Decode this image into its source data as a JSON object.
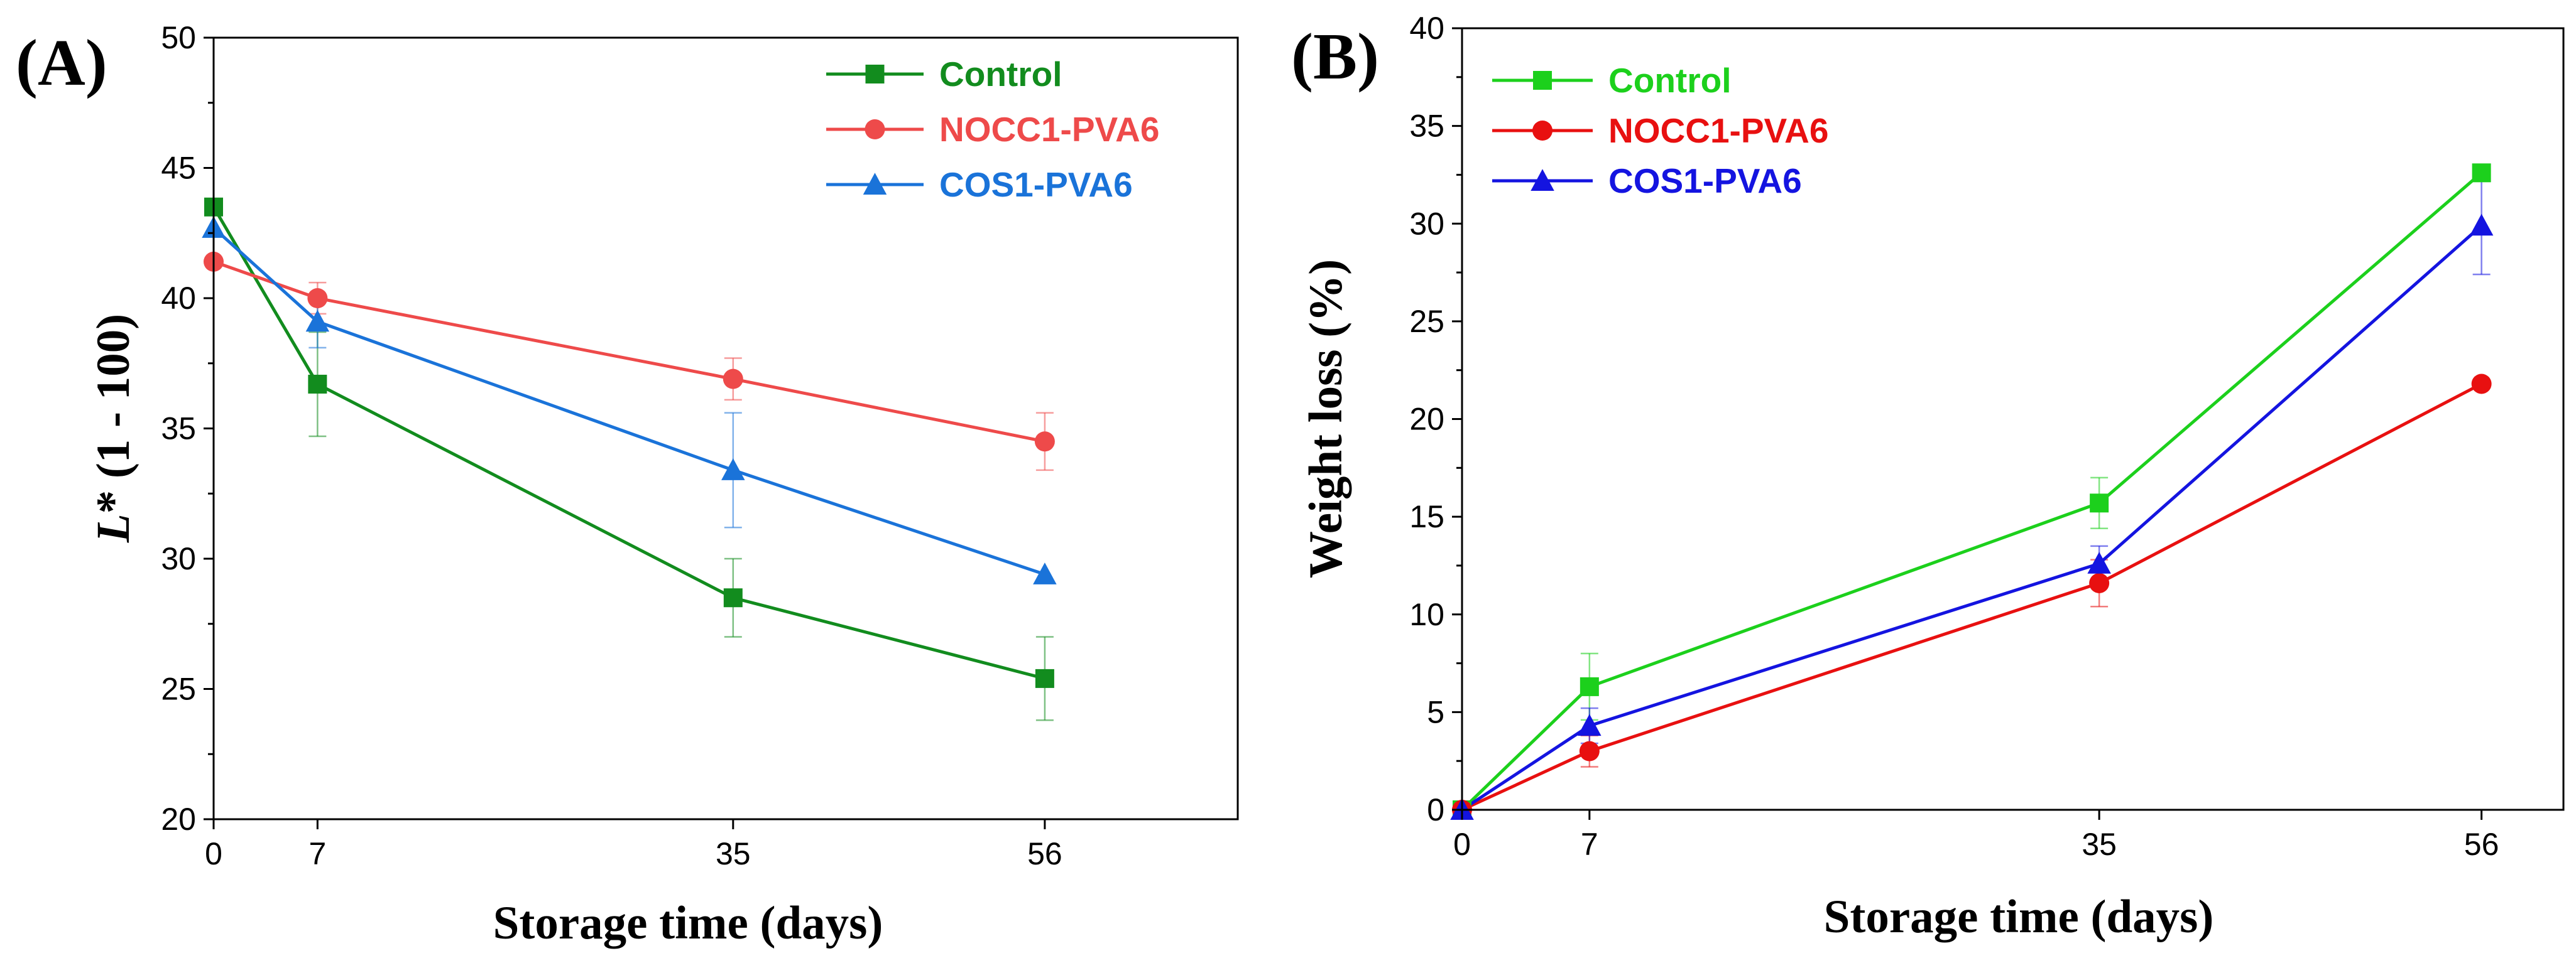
{
  "chart_data": [
    {
      "type": "line",
      "panel_label": "(A)",
      "xlabel": "Storage time (days)",
      "ylabel_italic": "L",
      "ylabel_rest": "* (1 - 100)",
      "x": [
        0,
        7,
        35,
        56
      ],
      "x_tick_labels": [
        "0",
        "7",
        "35",
        "56"
      ],
      "y_ticks": [
        20,
        25,
        30,
        35,
        40,
        45,
        50
      ],
      "y_tick_labels": [
        "20",
        "25",
        "30",
        "35",
        "40",
        "45",
        "50"
      ],
      "xlim": [
        0,
        69
      ],
      "ylim": [
        20,
        50
      ],
      "legend_position": "top-right",
      "series": [
        {
          "name": "Control",
          "color": "#128c1e",
          "marker": "square",
          "values": [
            43.5,
            36.7,
            28.5,
            25.4
          ],
          "errors": [
            0,
            2.0,
            1.5,
            1.6
          ]
        },
        {
          "name": "NOCC1-PVA6",
          "color": "#ee4a4a",
          "marker": "circle",
          "values": [
            41.4,
            40.0,
            36.9,
            34.5
          ],
          "errors": [
            0,
            0.6,
            0.8,
            1.1
          ]
        },
        {
          "name": "COS1-PVA6",
          "color": "#1a73d9",
          "marker": "triangle",
          "values": [
            42.7,
            39.1,
            33.4,
            29.4
          ],
          "errors": [
            0,
            1.0,
            2.2,
            0
          ]
        }
      ]
    },
    {
      "type": "line",
      "panel_label": "(B)",
      "xlabel": "Storage time (days)",
      "ylabel": "Weight loss (%)",
      "x": [
        0,
        7,
        35,
        56
      ],
      "x_tick_labels": [
        "0",
        "7",
        "35",
        "56"
      ],
      "y_ticks": [
        0,
        5,
        10,
        15,
        20,
        25,
        30,
        35,
        40
      ],
      "y_tick_labels": [
        "0",
        "5",
        "10",
        "15",
        "20",
        "25",
        "30",
        "35",
        "40"
      ],
      "xlim": [
        0,
        60.5
      ],
      "ylim": [
        0,
        40
      ],
      "legend_position": "top-left",
      "series": [
        {
          "name": "Control",
          "color": "#1cd01c",
          "marker": "square",
          "values": [
            0,
            6.3,
            15.7,
            32.6
          ],
          "errors": [
            0,
            1.7,
            1.3,
            0
          ]
        },
        {
          "name": "NOCC1-PVA6",
          "color": "#e81010",
          "marker": "circle",
          "values": [
            0,
            3.0,
            11.6,
            21.8
          ],
          "errors": [
            0,
            0.8,
            1.2,
            0
          ]
        },
        {
          "name": "COS1-PVA6",
          "color": "#1414e0",
          "marker": "triangle",
          "values": [
            0,
            4.3,
            12.6,
            29.9
          ],
          "errors": [
            0,
            0.9,
            0.9,
            2.5
          ]
        }
      ]
    }
  ]
}
